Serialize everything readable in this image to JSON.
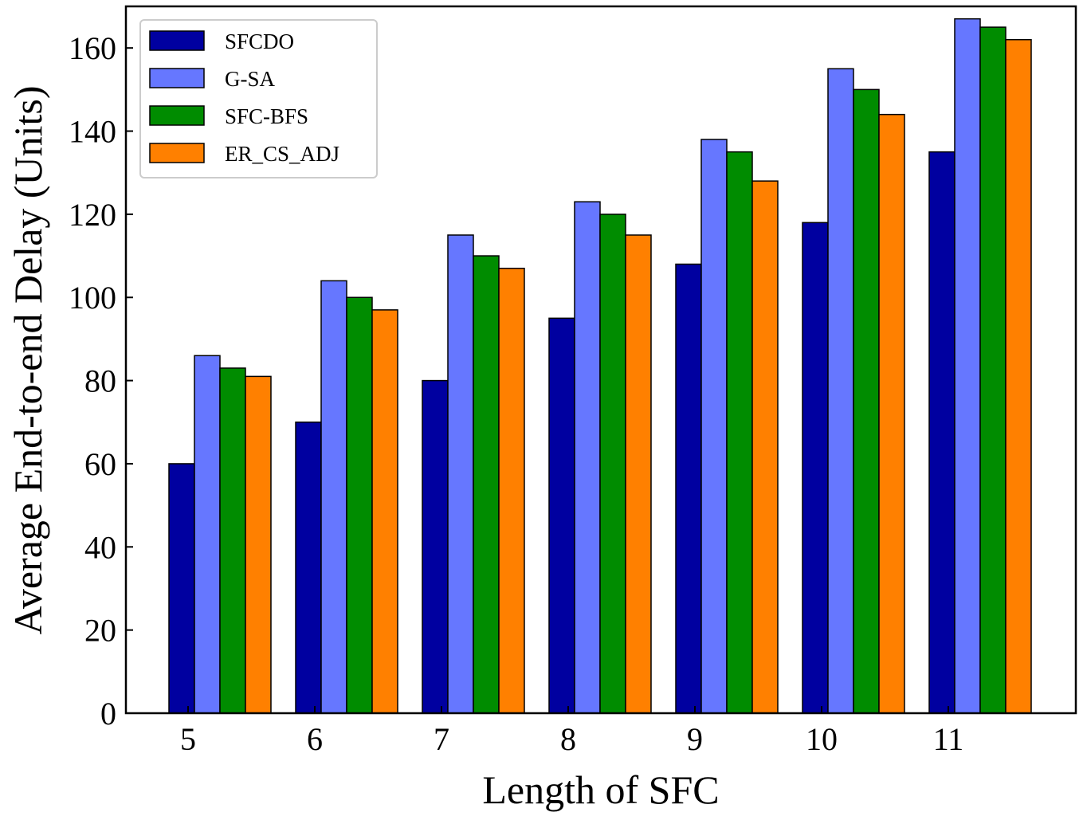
{
  "chart_data": {
    "type": "bar",
    "title": "",
    "xlabel": "Length of SFC",
    "ylabel": "Average End-to-end Delay (Units)",
    "categories": [
      "5",
      "6",
      "7",
      "8",
      "9",
      "10",
      "11"
    ],
    "ylim": [
      0,
      170
    ],
    "yticks": [
      0,
      20,
      40,
      60,
      80,
      100,
      120,
      140,
      160
    ],
    "grid": false,
    "legend_position": "top-left",
    "series": [
      {
        "name": "SFCDO",
        "color": "#0000a0",
        "values": [
          60,
          70,
          80,
          95,
          108,
          118,
          135
        ]
      },
      {
        "name": "G-SA",
        "color": "#6677ff",
        "values": [
          86,
          104,
          115,
          123,
          138,
          155,
          167
        ]
      },
      {
        "name": "SFC-BFS",
        "color": "#008c00",
        "values": [
          83,
          100,
          110,
          120,
          135,
          150,
          165
        ]
      },
      {
        "name": "ER_CS_ADJ",
        "color": "#ff8000",
        "values": [
          81,
          97,
          107,
          115,
          128,
          144,
          162
        ]
      }
    ]
  }
}
